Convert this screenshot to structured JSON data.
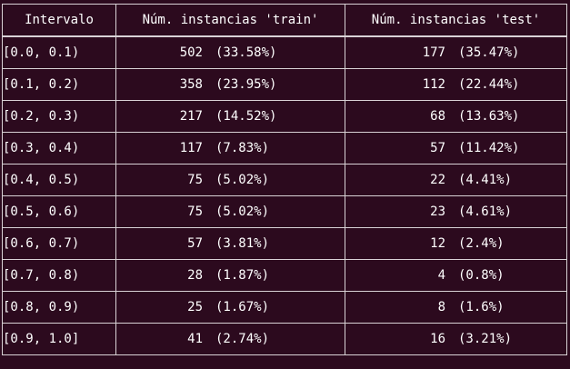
{
  "table": {
    "headers": [
      "Intervalo",
      "Núm. instancias 'train'",
      "Núm. instancias 'test'"
    ],
    "rows": [
      {
        "interval": "[0.0, 0.1)",
        "train": "502",
        "train_pct": "(33.58%)",
        "test": "177",
        "test_pct": "(35.47%)"
      },
      {
        "interval": "[0.1, 0.2)",
        "train": "358",
        "train_pct": "(23.95%)",
        "test": "112",
        "test_pct": "(22.44%)"
      },
      {
        "interval": "[0.2, 0.3)",
        "train": "217",
        "train_pct": "(14.52%)",
        "test": "68",
        "test_pct": "(13.63%)"
      },
      {
        "interval": "[0.3, 0.4)",
        "train": "117",
        "train_pct": "(7.83%)",
        "test": "57",
        "test_pct": "(11.42%)"
      },
      {
        "interval": "[0.4, 0.5)",
        "train": "75",
        "train_pct": "(5.02%)",
        "test": "22",
        "test_pct": "(4.41%)"
      },
      {
        "interval": "[0.5, 0.6)",
        "train": "75",
        "train_pct": "(5.02%)",
        "test": "23",
        "test_pct": "(4.61%)"
      },
      {
        "interval": "[0.6, 0.7)",
        "train": "57",
        "train_pct": "(3.81%)",
        "test": "12",
        "test_pct": "(2.4%)"
      },
      {
        "interval": "[0.7, 0.8)",
        "train": "28",
        "train_pct": "(1.87%)",
        "test": "4",
        "test_pct": "(0.8%)"
      },
      {
        "interval": "[0.8, 0.9)",
        "train": "25",
        "train_pct": "(1.67%)",
        "test": "8",
        "test_pct": "(1.6%)"
      },
      {
        "interval": "[0.9, 1.0]",
        "train": "41",
        "train_pct": "(2.74%)",
        "test": "16",
        "test_pct": "(3.21%)"
      }
    ]
  },
  "colors": {
    "background": "#2c0a1e",
    "border": "#d9d2d6",
    "text": "#ffffff"
  }
}
